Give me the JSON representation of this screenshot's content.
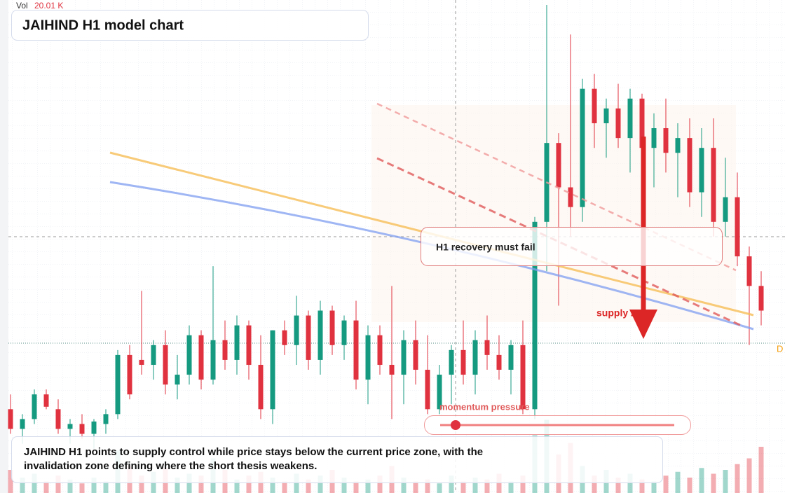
{
  "chart_data": {
    "type": "candlestick",
    "title": "JAIHIND H1 model chart",
    "volume_label": "Vol",
    "volume_value_label": "20.01 K",
    "price_tag": "D",
    "annotations": [
      "H1 recovery must fail",
      "supply zone",
      "momentum pressure"
    ],
    "description": "JAIHIND H1 points to supply control while price stays below the current price zone, with the invalidation zone defining where the short thesis weakens.",
    "up_color": "#159a80",
    "down_color": "#e0323f",
    "ylim": [
      0,
      100
    ],
    "vlim": [
      0,
      40
    ],
    "grid": true,
    "open": [
      17,
      13,
      15,
      20,
      17,
      13,
      14,
      12,
      14,
      16,
      28,
      27,
      26,
      30,
      22,
      24,
      32,
      23,
      31,
      27,
      34,
      26,
      17,
      33,
      30,
      36,
      27,
      37,
      30,
      35,
      23,
      32,
      26,
      24,
      31,
      25,
      17,
      24,
      29,
      24,
      31,
      28,
      25,
      30,
      17,
      55,
      71,
      62,
      58,
      82,
      75,
      78,
      72,
      80,
      70,
      74,
      69,
      72,
      61,
      70,
      55,
      60,
      48,
      42
    ],
    "high": [
      20,
      16,
      21,
      21,
      19,
      15,
      16,
      15,
      17,
      29,
      30,
      41,
      31,
      33,
      28,
      34,
      33,
      46,
      35,
      36,
      35,
      32,
      33,
      35,
      40,
      37,
      39,
      38,
      36,
      39,
      34,
      34,
      42,
      33,
      35,
      32,
      26,
      30,
      35,
      33,
      36,
      32,
      31,
      35,
      56,
      99,
      73,
      93,
      84,
      85,
      80,
      83,
      82,
      81,
      77,
      80,
      75,
      76,
      74,
      76,
      68,
      65,
      50,
      45
    ],
    "low": [
      12,
      10,
      14,
      17,
      12,
      10,
      11,
      9,
      12,
      15,
      19,
      24,
      23,
      20,
      19,
      22,
      21,
      22,
      25,
      24,
      23,
      15,
      14,
      28,
      26,
      25,
      24,
      28,
      27,
      21,
      18,
      24,
      15,
      18,
      22,
      16,
      16,
      18,
      22,
      20,
      25,
      23,
      20,
      16,
      15,
      45,
      38,
      52,
      55,
      70,
      68,
      70,
      65,
      66,
      62,
      65,
      60,
      58,
      56,
      52,
      52,
      46,
      30,
      34
    ],
    "close": [
      13,
      15,
      20,
      17.5,
      13,
      14,
      12,
      14.5,
      16,
      28,
      20,
      26,
      30,
      22,
      24,
      32,
      23,
      31,
      27,
      34,
      26,
      17,
      33,
      30,
      36,
      27,
      37,
      30,
      35,
      23,
      32,
      26,
      24,
      31,
      25,
      17,
      24,
      29,
      24,
      31,
      28,
      25,
      30,
      17,
      55,
      71,
      62,
      58,
      82,
      75,
      78,
      72,
      80,
      70,
      74,
      69,
      72,
      61,
      70,
      55,
      60,
      48,
      42,
      37
    ],
    "volume": [
      12,
      8,
      10,
      6,
      9,
      7,
      5,
      8,
      6,
      22,
      14,
      9,
      11,
      13,
      8,
      10,
      9,
      18,
      12,
      7,
      9,
      11,
      8,
      6,
      10,
      7,
      9,
      12,
      8,
      6,
      7,
      9,
      14,
      8,
      6,
      7,
      5,
      9,
      6,
      8,
      7,
      10,
      6,
      9,
      30,
      38,
      20,
      26,
      14,
      9,
      12,
      8,
      10,
      7,
      6,
      9,
      11,
      8,
      13,
      10,
      12,
      15,
      18,
      24
    ]
  }
}
